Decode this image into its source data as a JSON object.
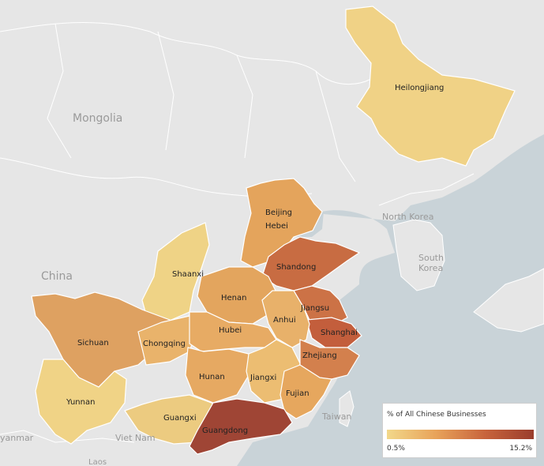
{
  "map": {
    "places": {
      "mongolia": "Mongolia",
      "china": "China",
      "north_korea": "North Korea",
      "south_korea": "South\nKorea",
      "taiwan": "Taiwan",
      "viet_nam": "Viet Nam",
      "myanmar": "yanmar",
      "laos": "Laos"
    },
    "provinces": [
      {
        "key": "heilongjiang",
        "label": "Heilongjiang",
        "color": "#f0d286"
      },
      {
        "key": "beijing",
        "label": "Beijing",
        "color": "#e4a45c"
      },
      {
        "key": "hebei",
        "label": "Hebei",
        "color": "#e4a45c"
      },
      {
        "key": "shandong",
        "label": "Shandong",
        "color": "#c86c42"
      },
      {
        "key": "shaanxi",
        "label": "Shaanxi",
        "color": "#efd386"
      },
      {
        "key": "henan",
        "label": "Henan",
        "color": "#e3a55e"
      },
      {
        "key": "jiangsu",
        "label": "Jiangsu",
        "color": "#cc7246"
      },
      {
        "key": "anhui",
        "label": "Anhui",
        "color": "#e8b16a"
      },
      {
        "key": "shanghai",
        "label": "Shanghai",
        "color": "#c35e3c"
      },
      {
        "key": "sichuan",
        "label": "Sichuan",
        "color": "#dea161"
      },
      {
        "key": "chongqing",
        "label": "Chongqing",
        "color": "#e9b36b"
      },
      {
        "key": "hubei",
        "label": "Hubei",
        "color": "#e7ab64"
      },
      {
        "key": "zhejiang",
        "label": "Zhejiang",
        "color": "#d3804d"
      },
      {
        "key": "hunan",
        "label": "Hunan",
        "color": "#e6a962"
      },
      {
        "key": "jiangxi",
        "label": "Jiangxi",
        "color": "#ecbd72"
      },
      {
        "key": "fujian",
        "label": "Fujian",
        "color": "#e6a75e"
      },
      {
        "key": "yunnan",
        "label": "Yunnan",
        "color": "#f0d386"
      },
      {
        "key": "guangxi",
        "label": "Guangxi",
        "color": "#eccb80"
      },
      {
        "key": "guangdong",
        "label": "Guangdong",
        "color": "#9f4535"
      }
    ]
  },
  "legend": {
    "title": "% of All Chinese Businesses",
    "min": "0.5%",
    "max": "15.2%",
    "colors": [
      "#f2d88a",
      "#e8a35a",
      "#c8643c",
      "#9a3d2c"
    ]
  }
}
